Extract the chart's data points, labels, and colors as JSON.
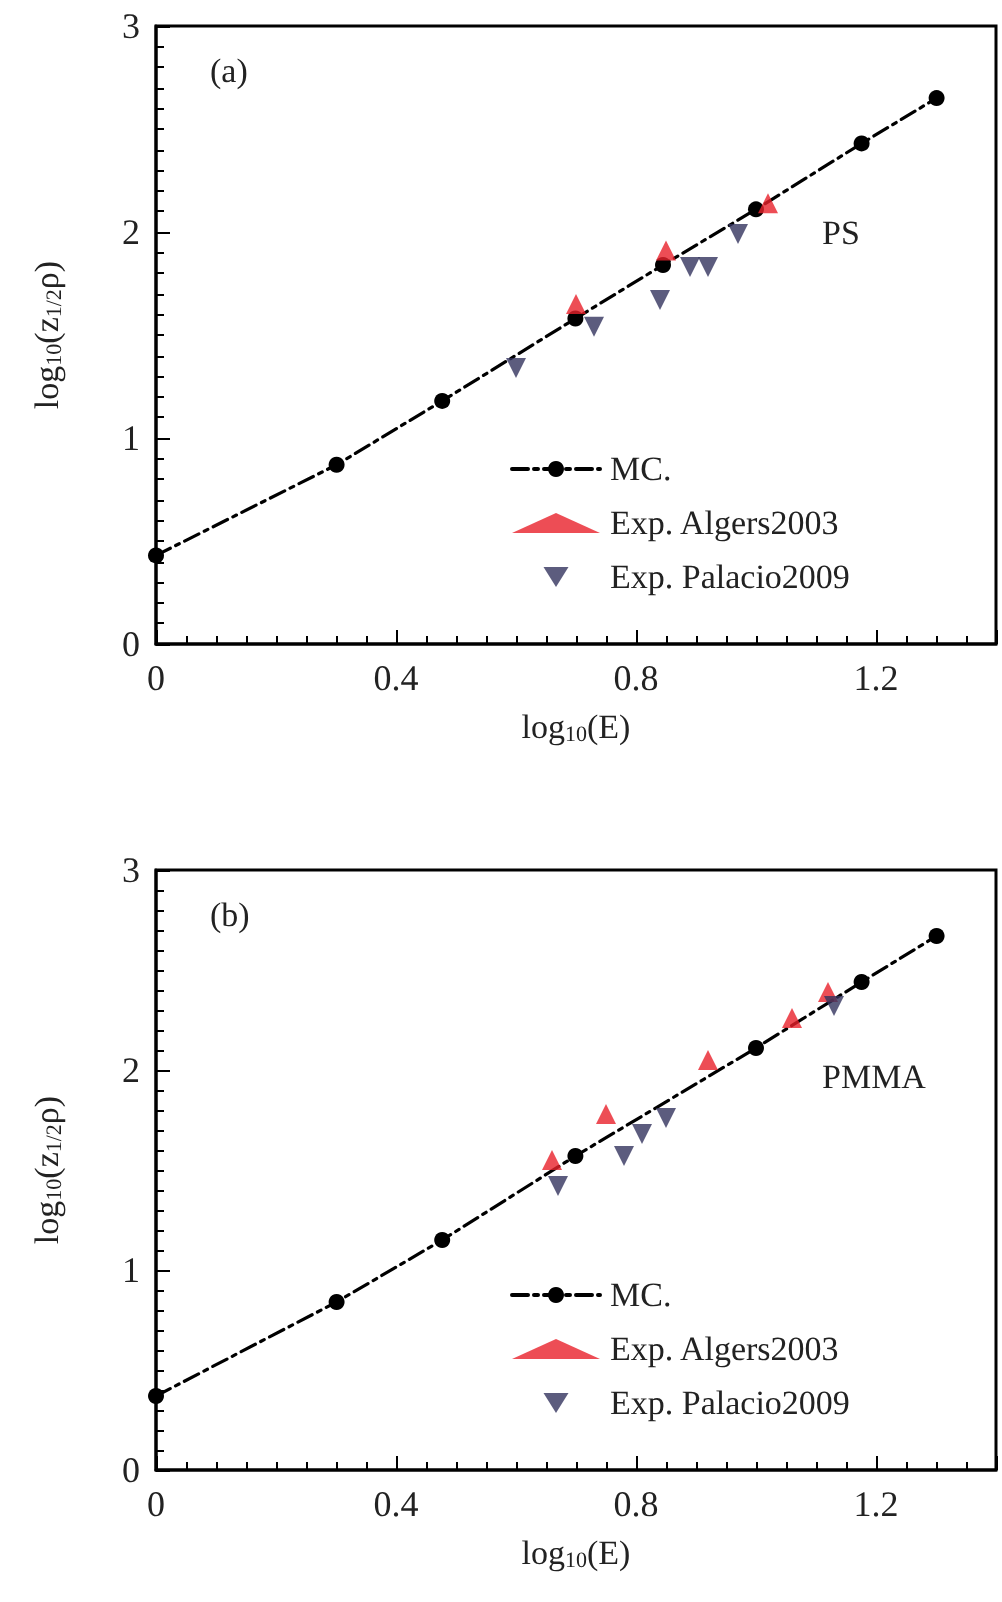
{
  "chart_data": [
    {
      "type": "scatter",
      "xlabel": "log$_{10}$(E)",
      "ylabel": "log$_{10}$(z$_{1/2}$ρ)",
      "annotations": [
        "(a)",
        "PS"
      ],
      "xlim": [
        0,
        1.4
      ],
      "ylim": [
        0,
        3
      ],
      "xticks": [
        0,
        0.4,
        0.8,
        1.2
      ],
      "yticks": [
        0,
        1,
        2,
        3
      ],
      "grid": false,
      "legend": "bottom right",
      "series": [
        {
          "name": "MC.",
          "type": "line",
          "color": "#000000",
          "marker": "circle",
          "line_style": "dashed",
          "x": [
            0,
            0.301,
            0.477,
            0.699,
            0.845,
            1.0,
            1.176,
            1.301
          ],
          "values": [
            0.43,
            0.87,
            1.18,
            1.58,
            1.84,
            2.11,
            2.43,
            2.65
          ]
        },
        {
          "name": "Exp. Algers2003",
          "color": "#e8212a",
          "marker": "triangle",
          "x": [
            0.7,
            0.85,
            1.02
          ],
          "values": [
            1.65,
            1.91,
            2.14
          ]
        },
        {
          "name": "Exp. Palacio2009",
          "color": "#33335e",
          "marker": "triangle-down",
          "x": [
            0.6,
            0.73,
            0.84,
            0.89,
            0.92,
            0.97
          ],
          "values": [
            1.34,
            1.54,
            1.67,
            1.83,
            1.83,
            1.99
          ]
        }
      ]
    },
    {
      "type": "scatter",
      "xlabel": "log$_{10}$(E)",
      "ylabel": "log$_{10}$(z$_{1/2}$ρ)",
      "annotations": [
        "(b)",
        "PMMA"
      ],
      "xlim": [
        0,
        1.4
      ],
      "ylim": [
        0,
        3
      ],
      "xticks": [
        0,
        0.4,
        0.8,
        1.2
      ],
      "yticks": [
        0,
        1,
        2,
        3
      ],
      "grid": false,
      "legend": "bottom right",
      "series": [
        {
          "name": "MC.",
          "type": "line",
          "color": "#000000",
          "marker": "circle",
          "line_style": "dashed",
          "x": [
            0,
            0.301,
            0.477,
            0.699,
            1.0,
            1.176,
            1.301
          ],
          "values": [
            0.37,
            0.84,
            1.15,
            1.57,
            2.11,
            2.44,
            2.67
          ]
        },
        {
          "name": "Exp. Algers2003",
          "color": "#e8212a",
          "marker": "triangle",
          "x": [
            0.66,
            0.75,
            0.92,
            1.06,
            1.12
          ],
          "values": [
            1.55,
            1.78,
            2.05,
            2.26,
            2.39
          ]
        },
        {
          "name": "Exp. Palacio2009",
          "color": "#33335e",
          "marker": "triangle-down",
          "x": [
            0.67,
            0.78,
            0.81,
            0.85,
            1.13
          ],
          "values": [
            1.42,
            1.57,
            1.68,
            1.76,
            2.32
          ]
        }
      ]
    }
  ]
}
